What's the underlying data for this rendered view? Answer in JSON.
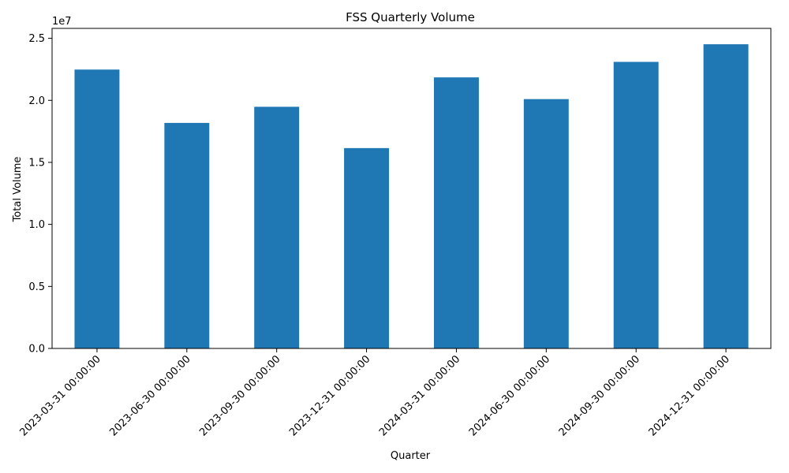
{
  "chart_data": {
    "type": "bar",
    "title": "FSS Quarterly Volume",
    "xlabel": "Quarter",
    "ylabel": "Total Volume",
    "y_scale_label": "1e7",
    "categories": [
      "2023-03-31 00:00:00",
      "2023-06-30 00:00:00",
      "2023-09-30 00:00:00",
      "2023-12-31 00:00:00",
      "2024-03-31 00:00:00",
      "2024-06-30 00:00:00",
      "2024-09-30 00:00:00",
      "2024-12-31 00:00:00"
    ],
    "values": [
      22480000,
      18180000,
      19480000,
      16150000,
      21850000,
      20100000,
      23100000,
      24520000
    ],
    "ylim": [
      0,
      25800000
    ],
    "yticks": [
      0,
      5000000,
      10000000,
      15000000,
      20000000,
      25000000
    ],
    "ytick_labels": [
      "0.0",
      "0.5",
      "1.0",
      "1.5",
      "2.0",
      "2.5"
    ],
    "bar_color": "#1f77b4",
    "grid": false,
    "legend": "none"
  }
}
